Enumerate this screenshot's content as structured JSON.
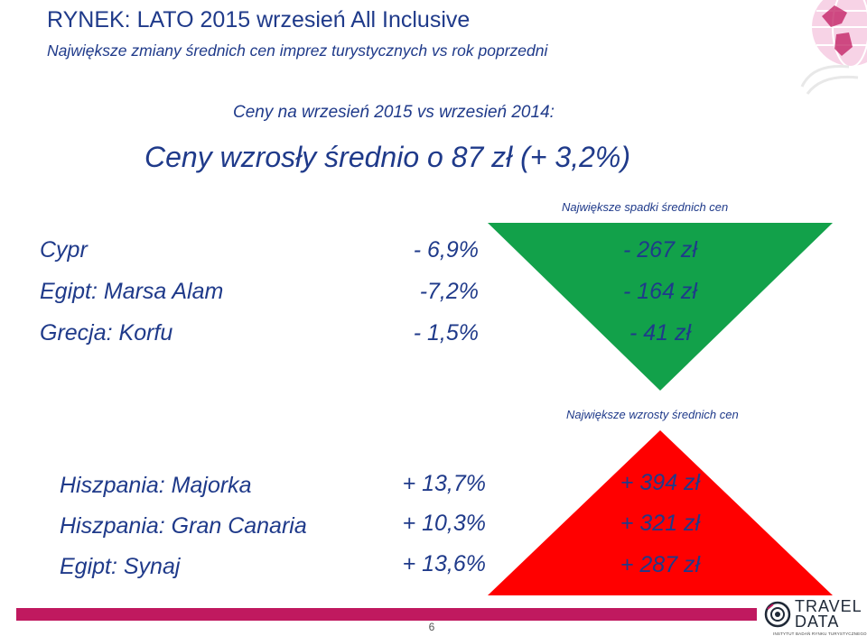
{
  "header": {
    "title": "RYNEK: LATO 2015 wrzesień All Inclusive",
    "subtitle": "Największe zmiany średnich cen imprez turystycznych vs rok poprzedni",
    "compare_line": "Ceny na wrzesień 2015  vs  wrzesień 2014:",
    "headline": "Ceny wzrosły średnio o 87 zł (+ 3,2%)"
  },
  "decreases": {
    "caption": "Największe spadki średnich cen",
    "shape_color": "#12a14a",
    "rows": [
      {
        "destination": "Cypr",
        "percent": "- 6,9%",
        "amount": "- 267 zł"
      },
      {
        "destination": "Egipt: Marsa Alam",
        "percent": "-7,2%",
        "amount": "- 164 zł"
      },
      {
        "destination": "Grecja: Korfu",
        "percent": "- 1,5%",
        "amount": "- 41 zł"
      }
    ]
  },
  "increases": {
    "caption": "Największe wzrosty średnich cen",
    "shape_color": "#ff0000",
    "rows": [
      {
        "destination": "Hiszpania: Majorka",
        "percent": "+ 13,7%",
        "amount": "+ 394 zł"
      },
      {
        "destination": "Hiszpania: Gran Canaria",
        "percent": "+ 10,3%",
        "amount": "+ 321 zł"
      },
      {
        "destination": "Egipt: Synaj",
        "percent": "+ 13,6%",
        "amount": "+ 287 zł"
      }
    ]
  },
  "footer": {
    "page_number": "6",
    "bar_color": "#c0195f",
    "logo_line1": "TRAVEL",
    "logo_line2": "DATA",
    "logo_small": "INSTYTUT BADAŃ RYNKU TURYSTYCZNEGO"
  },
  "colors": {
    "text": "#1f3a8a",
    "accent": "#c0195f"
  }
}
